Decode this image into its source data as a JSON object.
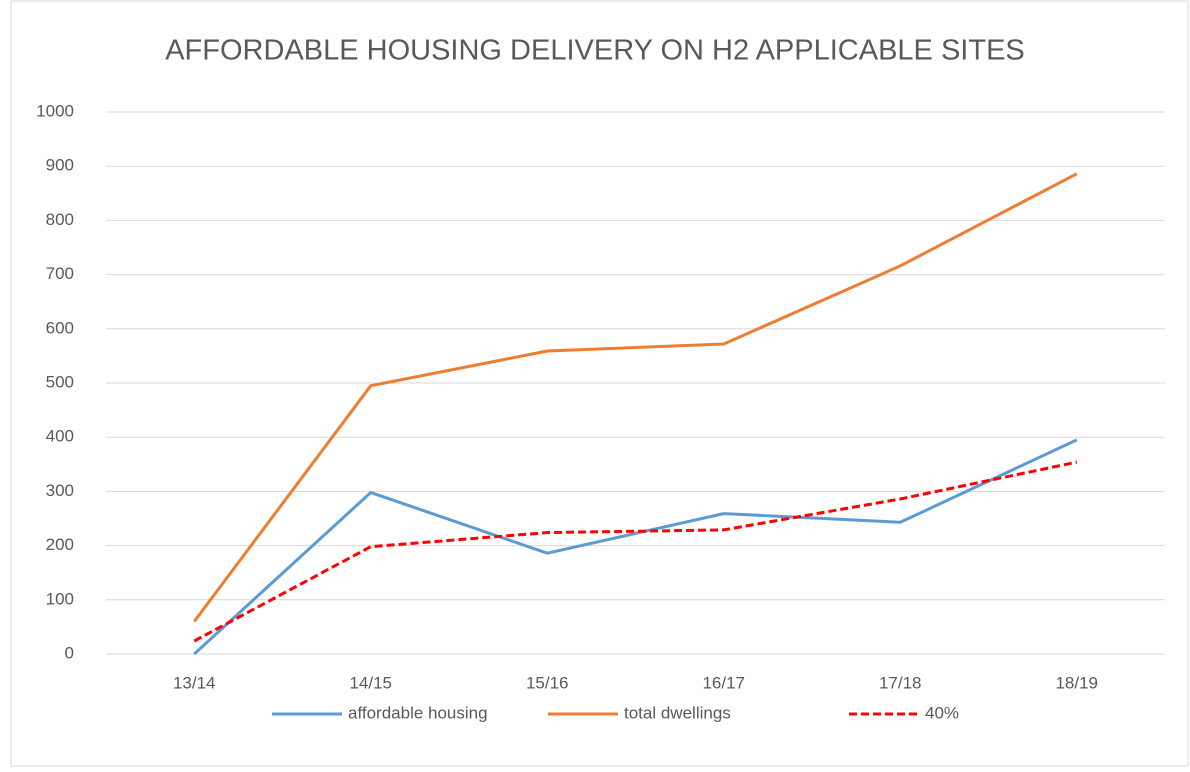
{
  "chart_data": {
    "type": "line",
    "title": "AFFORDABLE HOUSING DELIVERY ON H2 APPLICABLE SITES",
    "categories": [
      "13/14",
      "14/15",
      "15/16",
      "16/17",
      "17/18",
      "18/19"
    ],
    "series": [
      {
        "name": "affordable housing",
        "color": "#5b9bd5",
        "values": [
          0,
          298,
          186,
          259,
          243,
          395
        ]
      },
      {
        "name": "total dwellings",
        "color": "#ed7d31",
        "values": [
          60,
          495,
          559,
          572,
          716,
          886
        ]
      },
      {
        "name": "40%",
        "color": "#ff0000",
        "dashed": true,
        "values": [
          24,
          198,
          224,
          229,
          286,
          354
        ]
      }
    ],
    "ylim": [
      0,
      1000
    ],
    "yticks": [
      0,
      100,
      200,
      300,
      400,
      500,
      600,
      700,
      800,
      900,
      1000
    ],
    "grid": true,
    "legend": "bottom"
  }
}
